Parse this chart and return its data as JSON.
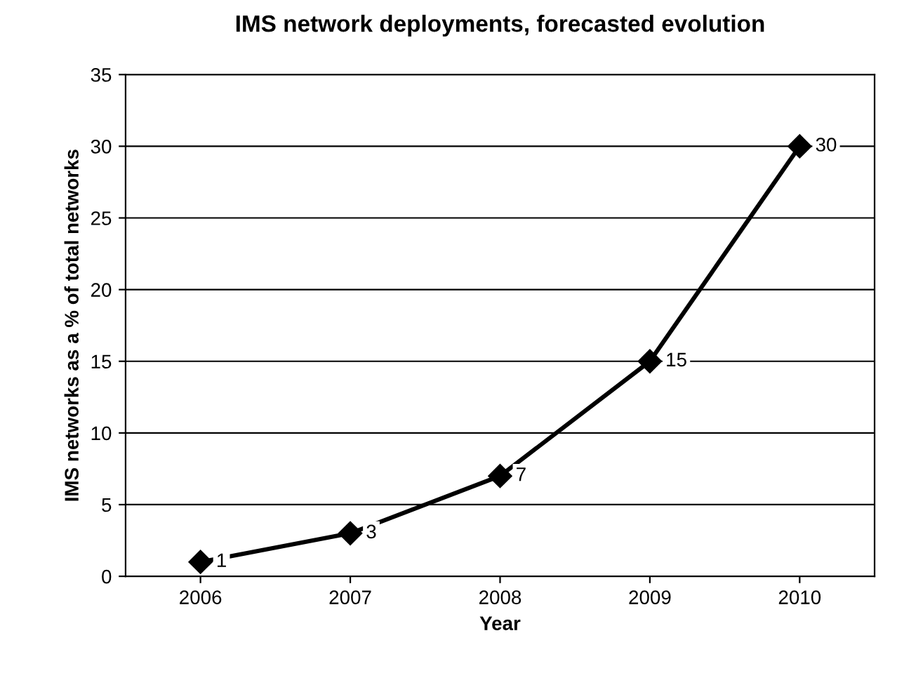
{
  "chart_data": {
    "type": "line",
    "title": "IMS network deployments, forecasted evolution",
    "xlabel": "Year",
    "ylabel": "IMS networks as a % of total networks",
    "categories": [
      "2006",
      "2007",
      "2008",
      "2009",
      "2010"
    ],
    "series": [
      {
        "color": "#000000",
        "values": [
          1,
          3,
          7,
          15,
          30
        ]
      }
    ],
    "ylim": [
      0,
      35
    ],
    "yticks": [
      0,
      5,
      10,
      15,
      20,
      25,
      30,
      35
    ],
    "grid": "y",
    "marker": "diamond",
    "line_style": "solid",
    "data_labels": true
  }
}
